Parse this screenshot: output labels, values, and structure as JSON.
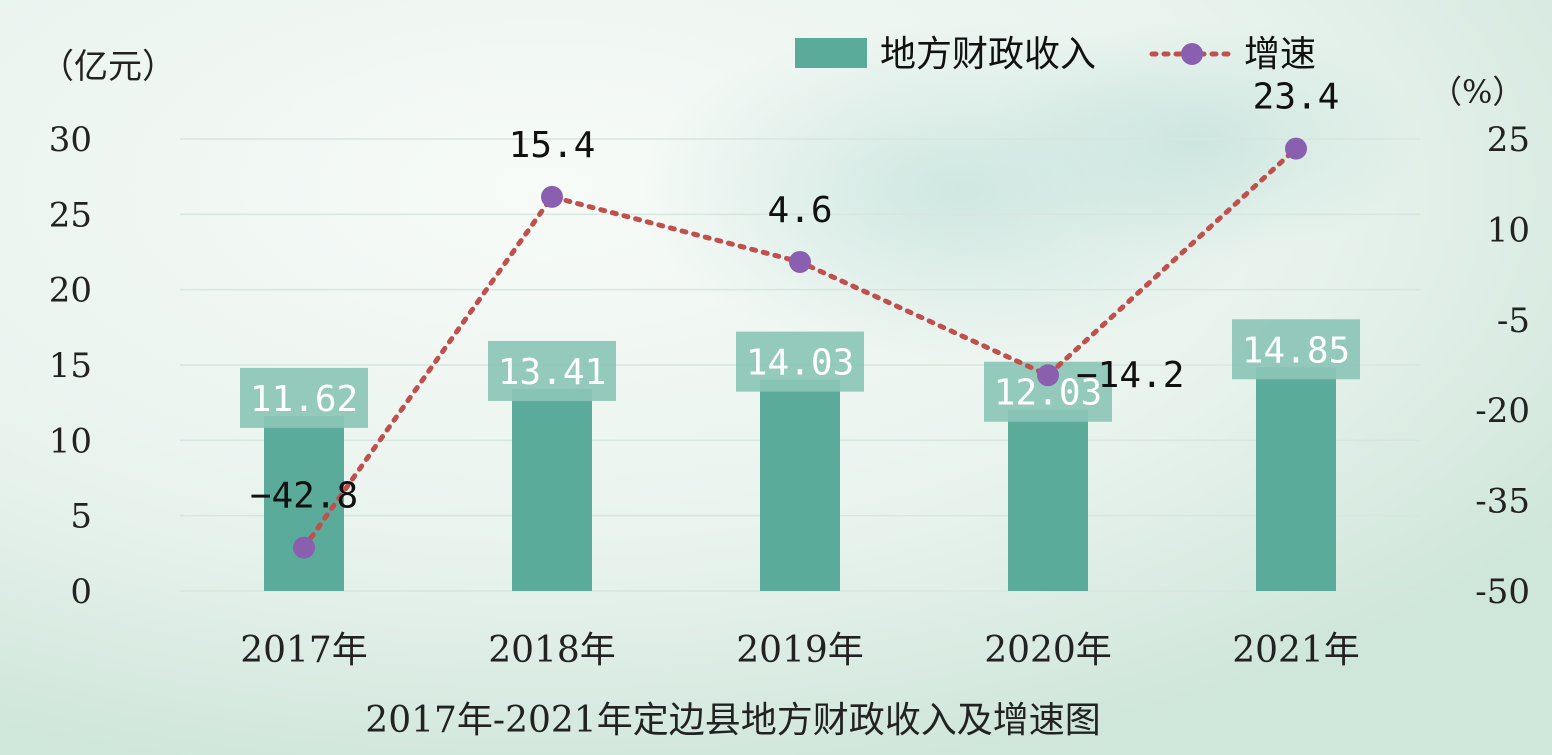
{
  "chart_data": {
    "type": "bar",
    "title": "2017年-2021年定边县地方财政收入及增速图",
    "y_left_unit": "（亿元）",
    "y_right_unit": "（%）",
    "categories": [
      "2017年",
      "2018年",
      "2019年",
      "2020年",
      "2021年"
    ],
    "y_left_ticks": [
      "0",
      "5",
      "10",
      "15",
      "20",
      "25",
      "30"
    ],
    "y_right_ticks": [
      "-50",
      "-35",
      "-20",
      "-5",
      "10",
      "25"
    ],
    "ylim_left": [
      0,
      30
    ],
    "ylim_right": [
      -50,
      25
    ],
    "grid": true,
    "legend_position": "top-right",
    "series": [
      {
        "name": "地方财政收入",
        "kind": "bar",
        "axis": "left",
        "color": "#5aab9a",
        "values": [
          11.62,
          13.41,
          14.03,
          12.03,
          14.85
        ],
        "labels": [
          "11.62",
          "13.41",
          "14.03",
          "12.03",
          "14.85"
        ]
      },
      {
        "name": "增速",
        "kind": "line",
        "axis": "right",
        "color": "#c0504d",
        "marker_color": "#8a5fb0",
        "values": [
          -42.8,
          15.4,
          4.6,
          -14.2,
          23.4
        ],
        "labels": [
          "−42.8",
          "15.4",
          "4.6",
          "−14.2",
          "23.4"
        ]
      }
    ]
  }
}
